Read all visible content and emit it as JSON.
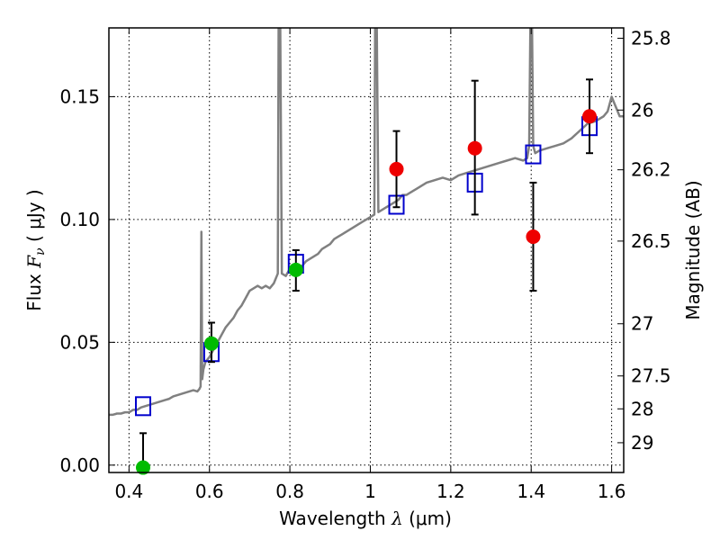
{
  "chart_data": {
    "type": "scatter",
    "xlabel_text": "Wavelength",
    "xlabel_symbol": "λ",
    "xlabel_unit": "(μm)",
    "ylabel_text": "Flux",
    "ylabel_symbol": "F",
    "ylabel_symbol_sub": "ν",
    "ylabel_unit": "( μJy )",
    "y2label": "Magnitude (AB)",
    "xlim": [
      0.35,
      1.63
    ],
    "ylim": [
      -0.003,
      0.178
    ],
    "grid": true,
    "x_ticks": [
      {
        "value": 0.4,
        "label": "0.4"
      },
      {
        "value": 0.6,
        "label": "0.6"
      },
      {
        "value": 0.8,
        "label": "0.8"
      },
      {
        "value": 1.0,
        "label": "1"
      },
      {
        "value": 1.2,
        "label": "1.2"
      },
      {
        "value": 1.4,
        "label": "1.4"
      },
      {
        "value": 1.6,
        "label": "1.6"
      }
    ],
    "y_ticks": [
      {
        "value": 0.0,
        "label": "0.00"
      },
      {
        "value": 0.05,
        "label": "0.05"
      },
      {
        "value": 0.1,
        "label": "0.10"
      },
      {
        "value": 0.15,
        "label": "0.15"
      }
    ],
    "y2_ticks": [
      {
        "mag": 25.8,
        "label": "25.8"
      },
      {
        "mag": 26.0,
        "label": "26"
      },
      {
        "mag": 26.2,
        "label": "26.2"
      },
      {
        "mag": 26.5,
        "label": "26.5"
      },
      {
        "mag": 27.0,
        "label": "27"
      },
      {
        "mag": 27.5,
        "label": "27.5"
      },
      {
        "mag": 28.0,
        "label": "28"
      },
      {
        "mag": 29.0,
        "label": "29"
      }
    ],
    "series": [
      {
        "kind": "line",
        "color": "#808080",
        "points": [
          [
            0.35,
            0.0205
          ],
          [
            0.36,
            0.0205
          ],
          [
            0.37,
            0.021
          ],
          [
            0.38,
            0.021
          ],
          [
            0.39,
            0.0215
          ],
          [
            0.4,
            0.0215
          ],
          [
            0.41,
            0.0225
          ],
          [
            0.42,
            0.0225
          ],
          [
            0.43,
            0.0235
          ],
          [
            0.44,
            0.024
          ],
          [
            0.45,
            0.0245
          ],
          [
            0.46,
            0.025
          ],
          [
            0.47,
            0.0255
          ],
          [
            0.48,
            0.026
          ],
          [
            0.49,
            0.0265
          ],
          [
            0.5,
            0.027
          ],
          [
            0.51,
            0.028
          ],
          [
            0.52,
            0.0285
          ],
          [
            0.53,
            0.029
          ],
          [
            0.54,
            0.0295
          ],
          [
            0.55,
            0.03
          ],
          [
            0.56,
            0.0305
          ],
          [
            0.57,
            0.03
          ],
          [
            0.575,
            0.031
          ],
          [
            0.578,
            0.032
          ],
          [
            0.58,
            0.095
          ],
          [
            0.582,
            0.035
          ],
          [
            0.585,
            0.039
          ],
          [
            0.59,
            0.042
          ],
          [
            0.6,
            0.044
          ],
          [
            0.61,
            0.047
          ],
          [
            0.62,
            0.05
          ],
          [
            0.63,
            0.053
          ],
          [
            0.64,
            0.056
          ],
          [
            0.65,
            0.058
          ],
          [
            0.66,
            0.06
          ],
          [
            0.67,
            0.063
          ],
          [
            0.68,
            0.065
          ],
          [
            0.69,
            0.068
          ],
          [
            0.7,
            0.071
          ],
          [
            0.71,
            0.072
          ],
          [
            0.72,
            0.073
          ],
          [
            0.73,
            0.072
          ],
          [
            0.74,
            0.073
          ],
          [
            0.75,
            0.072
          ],
          [
            0.76,
            0.074
          ],
          [
            0.77,
            0.078
          ],
          [
            0.772,
            0.18
          ],
          [
            0.776,
            0.18
          ],
          [
            0.78,
            0.078
          ],
          [
            0.79,
            0.077
          ],
          [
            0.8,
            0.08
          ],
          [
            0.81,
            0.079
          ],
          [
            0.82,
            0.081
          ],
          [
            0.83,
            0.081
          ],
          [
            0.84,
            0.083
          ],
          [
            0.85,
            0.084
          ],
          [
            0.86,
            0.085
          ],
          [
            0.87,
            0.086
          ],
          [
            0.88,
            0.088
          ],
          [
            0.89,
            0.089
          ],
          [
            0.9,
            0.09
          ],
          [
            0.91,
            0.092
          ],
          [
            0.92,
            0.093
          ],
          [
            0.93,
            0.094
          ],
          [
            0.94,
            0.095
          ],
          [
            0.95,
            0.096
          ],
          [
            0.96,
            0.097
          ],
          [
            0.97,
            0.098
          ],
          [
            0.98,
            0.099
          ],
          [
            0.99,
            0.1
          ],
          [
            1.0,
            0.101
          ],
          [
            1.01,
            0.102
          ],
          [
            1.012,
            0.18
          ],
          [
            1.016,
            0.18
          ],
          [
            1.02,
            0.103
          ],
          [
            1.03,
            0.104
          ],
          [
            1.04,
            0.105
          ],
          [
            1.05,
            0.106
          ],
          [
            1.06,
            0.107
          ],
          [
            1.07,
            0.108
          ],
          [
            1.08,
            0.11
          ],
          [
            1.09,
            0.11
          ],
          [
            1.1,
            0.111
          ],
          [
            1.12,
            0.113
          ],
          [
            1.14,
            0.115
          ],
          [
            1.16,
            0.116
          ],
          [
            1.18,
            0.117
          ],
          [
            1.2,
            0.116
          ],
          [
            1.22,
            0.118
          ],
          [
            1.24,
            0.119
          ],
          [
            1.26,
            0.12
          ],
          [
            1.28,
            0.121
          ],
          [
            1.3,
            0.122
          ],
          [
            1.32,
            0.123
          ],
          [
            1.34,
            0.124
          ],
          [
            1.36,
            0.125
          ],
          [
            1.38,
            0.124
          ],
          [
            1.39,
            0.125
          ],
          [
            1.395,
            0.13
          ],
          [
            1.398,
            0.18
          ],
          [
            1.402,
            0.18
          ],
          [
            1.405,
            0.13
          ],
          [
            1.41,
            0.127
          ],
          [
            1.42,
            0.128
          ],
          [
            1.44,
            0.129
          ],
          [
            1.46,
            0.13
          ],
          [
            1.48,
            0.131
          ],
          [
            1.5,
            0.133
          ],
          [
            1.52,
            0.136
          ],
          [
            1.54,
            0.139
          ],
          [
            1.56,
            0.14
          ],
          [
            1.58,
            0.142
          ],
          [
            1.59,
            0.144
          ],
          [
            1.6,
            0.15
          ],
          [
            1.61,
            0.146
          ],
          [
            1.62,
            0.142
          ],
          [
            1.63,
            0.142
          ]
        ]
      },
      {
        "kind": "open-square",
        "color": "#0000cc",
        "points": [
          [
            0.435,
            0.024
          ],
          [
            0.605,
            0.046
          ],
          [
            0.815,
            0.082
          ],
          [
            1.065,
            0.106
          ],
          [
            1.26,
            0.115
          ],
          [
            1.405,
            0.1265
          ],
          [
            1.545,
            0.138
          ]
        ]
      },
      {
        "kind": "filled-circle",
        "color": "#00bb00",
        "points": [
          {
            "x": 0.435,
            "y": -0.001,
            "yerr_low": 0.0,
            "yerr_high": 0.014
          },
          {
            "x": 0.605,
            "y": 0.0495,
            "yerr_low": 0.0075,
            "yerr_high": 0.0085
          },
          {
            "x": 0.815,
            "y": 0.0795,
            "yerr_low": 0.0085,
            "yerr_high": 0.008
          }
        ]
      },
      {
        "kind": "filled-circle",
        "color": "#ee0000",
        "points": [
          {
            "x": 1.065,
            "y": 0.1205,
            "yerr_low": 0.0155,
            "yerr_high": 0.0155
          },
          {
            "x": 1.26,
            "y": 0.129,
            "yerr_low": 0.027,
            "yerr_high": 0.0275
          },
          {
            "x": 1.405,
            "y": 0.093,
            "yerr_low": 0.022,
            "yerr_high": 0.022
          },
          {
            "x": 1.545,
            "y": 0.142,
            "yerr_low": 0.015,
            "yerr_high": 0.015
          }
        ]
      }
    ]
  }
}
